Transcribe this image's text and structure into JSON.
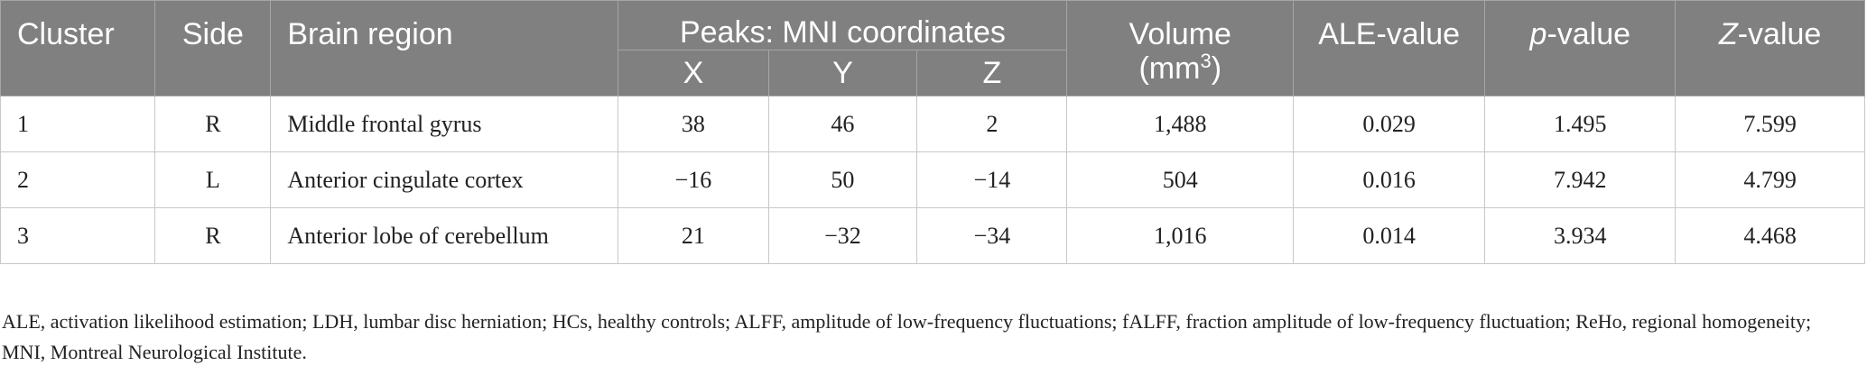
{
  "headers": {
    "cluster": "Cluster",
    "side": "Side",
    "brain_region": "Brain region",
    "peaks": "Peaks: MNI coordinates",
    "x": "X",
    "y": "Y",
    "z": "Z",
    "volume_text": "Volume (mm",
    "volume_sup": "3",
    "volume_close": ")",
    "ale": "ALE-value",
    "p_italic": "p",
    "p_rest": "-value",
    "z_italic": "Z",
    "z_rest": "-value"
  },
  "rows": [
    {
      "cluster": "1",
      "side": "R",
      "region": "Middle frontal gyrus",
      "x": "38",
      "y": "46",
      "z": "2",
      "volume": "1,488",
      "ale": "0.029",
      "p": "1.495",
      "zval": "7.599"
    },
    {
      "cluster": "2",
      "side": "L",
      "region": "Anterior cingulate cortex",
      "x": "−16",
      "y": "50",
      "z": "−14",
      "volume": "504",
      "ale": "0.016",
      "p": "7.942",
      "zval": "4.799"
    },
    {
      "cluster": "3",
      "side": "R",
      "region": "Anterior lobe of cerebellum",
      "x": "21",
      "y": "−32",
      "z": "−34",
      "volume": "1,016",
      "ale": "0.014",
      "p": "3.934",
      "zval": "4.468"
    }
  ],
  "footnote": "ALE, activation likelihood estimation; LDH, lumbar disc herniation; HCs, healthy controls; ALFF, amplitude of low-frequency fluctuations; fALFF, fraction amplitude of low-frequency fluctuation; ReHo, regional homogeneity; MNI, Montreal Neurological Institute."
}
